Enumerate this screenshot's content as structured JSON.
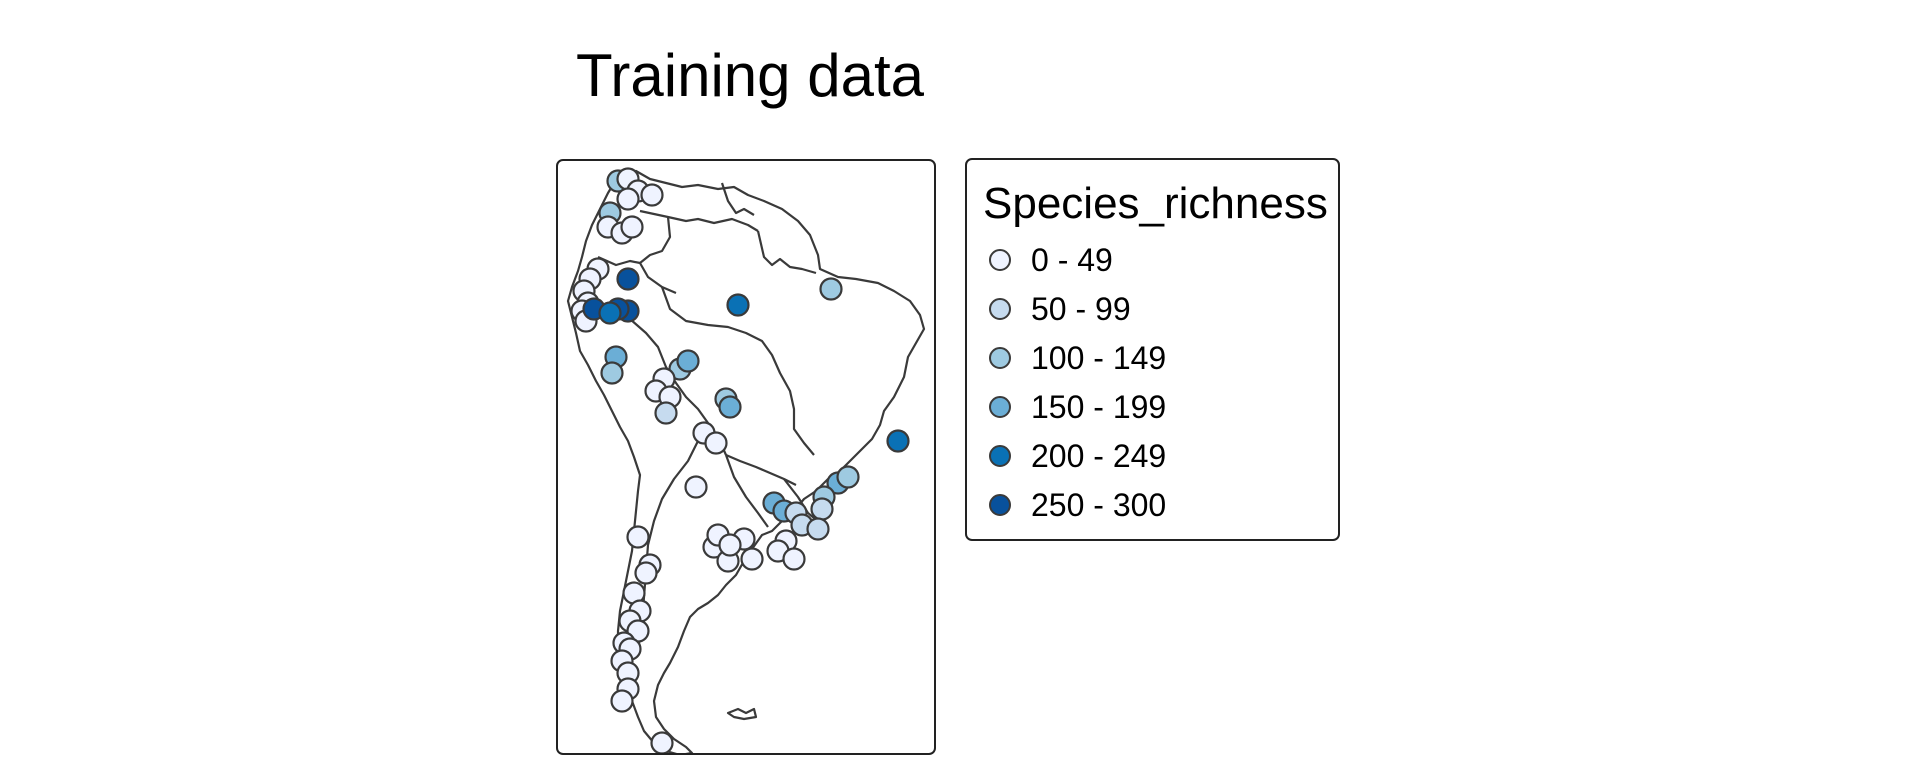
{
  "title": "Training data",
  "legend": {
    "title": "Species_richness",
    "classes": [
      {
        "label": "0 - 49",
        "color": "#eff3ff"
      },
      {
        "label": "50 - 99",
        "color": "#c6dbef"
      },
      {
        "label": "100 - 149",
        "color": "#9ecae1"
      },
      {
        "label": "150 - 199",
        "color": "#6baed6"
      },
      {
        "label": "200 - 249",
        "color": "#0a71b5"
      },
      {
        "label": "250 - 300",
        "color": "#08519c"
      }
    ]
  },
  "map": {
    "region": "South America",
    "outline_color": "#3a3a3a",
    "point_stroke": "#3a3a3a"
  }
}
